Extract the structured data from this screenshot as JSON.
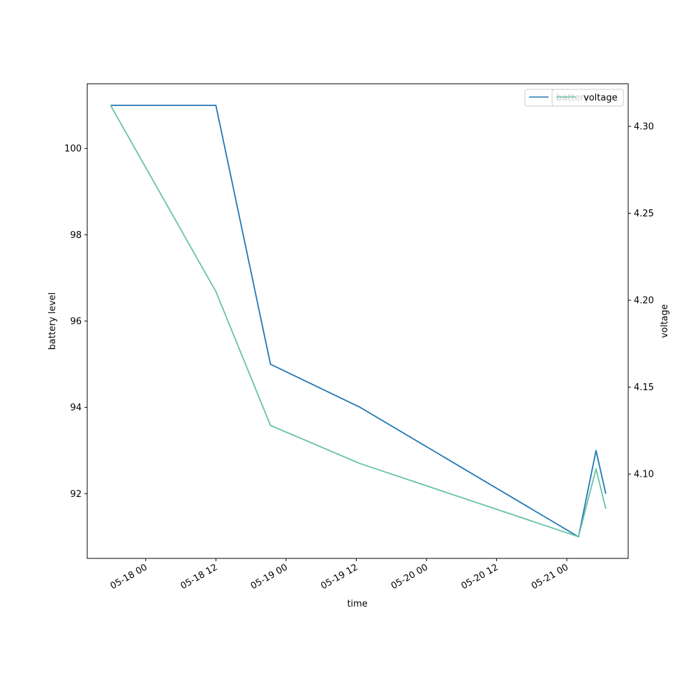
{
  "chart_data": {
    "type": "line",
    "title": "",
    "xlabel": "time",
    "ylabel_left": "battery level",
    "ylabel_right": "voltage",
    "x_ticks": [
      "05-18 00",
      "05-18 12",
      "05-19 00",
      "05-19 12",
      "05-20 00",
      "05-20 12",
      "05-21 00"
    ],
    "y_left_ticks": [
      "92",
      "94",
      "96",
      "98",
      "100"
    ],
    "y_right_ticks": [
      "4.10",
      "4.15",
      "4.20",
      "4.25",
      "4.30"
    ],
    "series": [
      {
        "name": "battery",
        "axis": "left",
        "color": "#1f77b4",
        "x": [
          "2022-05-17 18:00",
          "2022-05-18 12:00",
          "2022-05-18 21:20",
          "2022-05-19 12:40",
          "2022-05-21 02:00",
          "2022-05-21 05:00",
          "2022-05-21 06:40"
        ],
        "values": [
          101,
          101,
          95,
          94,
          91,
          93,
          92
        ]
      },
      {
        "name": "voltage",
        "axis": "right",
        "color": "#66c2a5",
        "x": [
          "2022-05-17 18:00",
          "2022-05-18 12:00",
          "2022-05-18 21:20",
          "2022-05-19 12:40",
          "2022-05-21 02:00",
          "2022-05-21 05:00",
          "2022-05-21 06:40"
        ],
        "values": [
          4.312,
          4.205,
          4.128,
          4.106,
          4.064,
          4.103,
          4.08
        ]
      }
    ],
    "ylim_left": [
      90.5,
      101.5
    ],
    "ylim_right": [
      4.0515,
      4.3245
    ],
    "xlim": [
      "2022-05-17 14:00",
      "2022-05-21 10:30"
    ],
    "legend_placement": "upper right",
    "grid": false
  }
}
